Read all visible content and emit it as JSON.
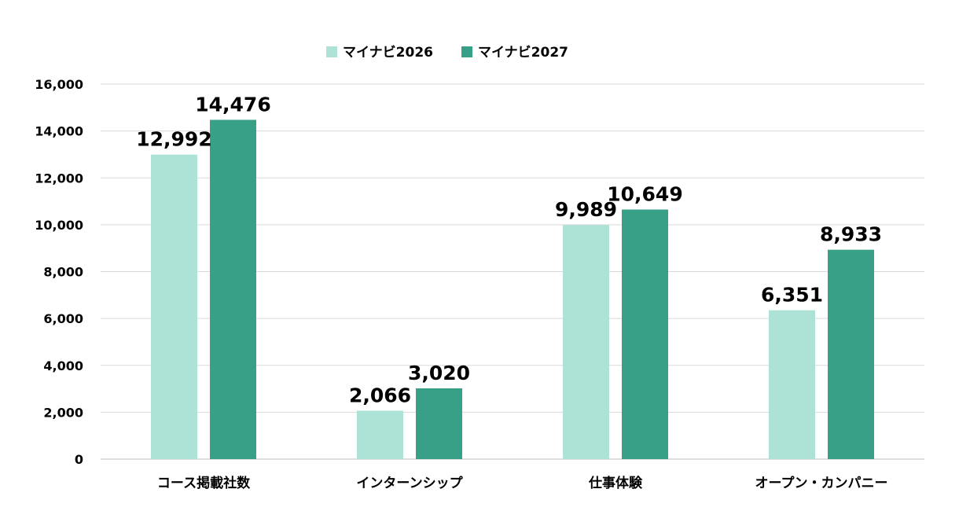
{
  "chart_data": {
    "type": "bar",
    "categories": [
      "コース掲載社数",
      "インターンシップ",
      "仕事体験",
      "オープン・カンパニー"
    ],
    "series": [
      {
        "name": "マイナビ2026",
        "values": [
          12992,
          2066,
          9989,
          6351
        ],
        "color": "#ade3d6"
      },
      {
        "name": "マイナビ2027",
        "values": [
          14476,
          3020,
          10649,
          8933
        ],
        "color": "#37a086"
      }
    ],
    "data_labels": [
      [
        "12,992",
        "2,066",
        "9,989",
        "6,351"
      ],
      [
        "14,476",
        "3,020",
        "10,649",
        "8,933"
      ]
    ],
    "ylim": [
      0,
      16000
    ],
    "y_ticks": [
      0,
      2000,
      4000,
      6000,
      8000,
      10000,
      12000,
      14000,
      16000
    ],
    "y_tick_labels": [
      "0",
      "2,000",
      "4,000",
      "6,000",
      "8,000",
      "10,000",
      "12,000",
      "14,000",
      "16,000"
    ],
    "grid": true,
    "legend_position": "top-center",
    "title": "",
    "xlabel": "",
    "ylabel": ""
  }
}
